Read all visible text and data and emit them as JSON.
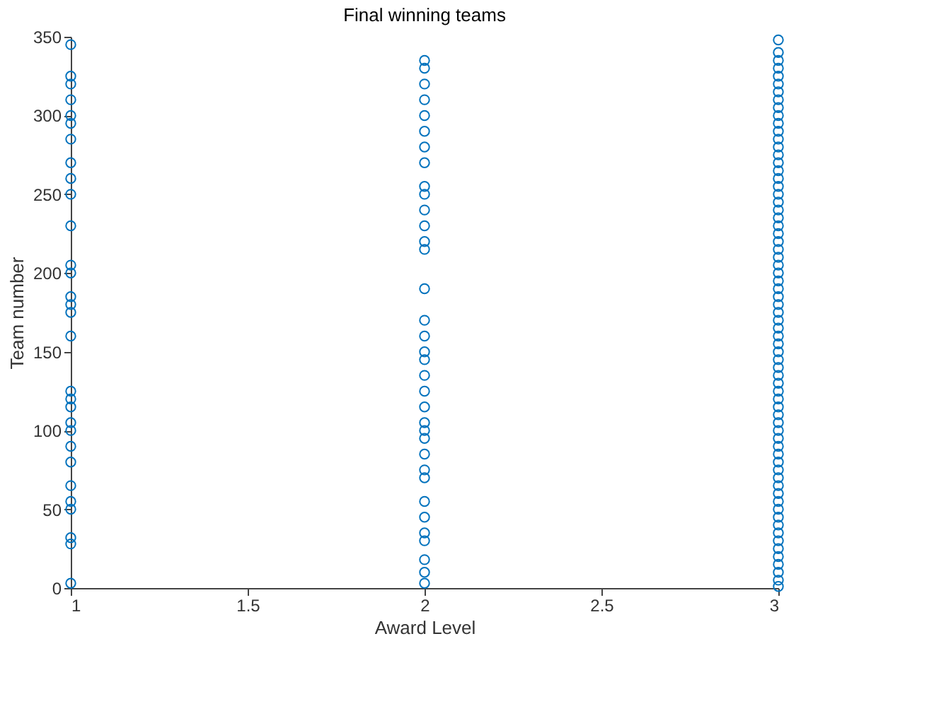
{
  "chart_data": {
    "type": "scatter",
    "title": "Final winning teams",
    "xlabel": "Award Level",
    "ylabel": "Team number",
    "xlim": [
      1,
      3
    ],
    "xticks": [
      1,
      1.5,
      2,
      2.5,
      3
    ],
    "ylim": [
      0,
      350
    ],
    "yticks": [
      0,
      50,
      100,
      150,
      200,
      250,
      300,
      350
    ],
    "grid": false,
    "marker": "circle",
    "series": [
      {
        "color": "#0072bd",
        "x": [
          1,
          1,
          1,
          1,
          1,
          1,
          1,
          1,
          1,
          1,
          1,
          1,
          1,
          1,
          1,
          1,
          1,
          1,
          1,
          1,
          1,
          1,
          1,
          1,
          1,
          1,
          1,
          1,
          1,
          1
        ],
        "values": [
          3,
          28,
          32,
          50,
          55,
          65,
          80,
          90,
          100,
          105,
          115,
          120,
          125,
          160,
          175,
          180,
          185,
          200,
          205,
          230,
          250,
          260,
          270,
          285,
          295,
          300,
          310,
          320,
          325,
          345
        ]
      },
      {
        "color": "#0072bd",
        "x": [
          2,
          2,
          2,
          2,
          2,
          2,
          2,
          2,
          2,
          2,
          2,
          2,
          2,
          2,
          2,
          2,
          2,
          2,
          2,
          2,
          2,
          2,
          2,
          2,
          2,
          2,
          2,
          2,
          2,
          2,
          2,
          2,
          2,
          2,
          2
        ],
        "values": [
          3,
          10,
          18,
          30,
          35,
          45,
          55,
          70,
          75,
          85,
          95,
          100,
          105,
          115,
          125,
          135,
          145,
          150,
          160,
          170,
          190,
          215,
          220,
          230,
          240,
          250,
          255,
          270,
          280,
          290,
          300,
          310,
          320,
          330,
          335
        ]
      },
      {
        "color": "#0072bd",
        "x": [
          3,
          3,
          3,
          3,
          3,
          3,
          3,
          3,
          3,
          3,
          3,
          3,
          3,
          3,
          3,
          3,
          3,
          3,
          3,
          3,
          3,
          3,
          3,
          3,
          3,
          3,
          3,
          3,
          3,
          3,
          3,
          3,
          3,
          3,
          3,
          3,
          3,
          3,
          3,
          3,
          3,
          3,
          3,
          3,
          3,
          3,
          3,
          3,
          3,
          3,
          3,
          3,
          3,
          3,
          3,
          3,
          3,
          3,
          3,
          3,
          3,
          3,
          3,
          3,
          3,
          3,
          3,
          3,
          3,
          3
        ],
        "values": [
          1,
          5,
          10,
          15,
          20,
          25,
          30,
          35,
          40,
          45,
          50,
          55,
          60,
          65,
          70,
          75,
          80,
          85,
          90,
          95,
          100,
          105,
          110,
          115,
          120,
          125,
          130,
          135,
          140,
          145,
          150,
          155,
          160,
          165,
          170,
          175,
          180,
          185,
          190,
          195,
          200,
          205,
          210,
          215,
          220,
          225,
          230,
          235,
          240,
          245,
          250,
          255,
          260,
          265,
          270,
          275,
          280,
          285,
          290,
          295,
          300,
          305,
          310,
          315,
          320,
          325,
          330,
          335,
          340,
          348
        ]
      }
    ]
  }
}
